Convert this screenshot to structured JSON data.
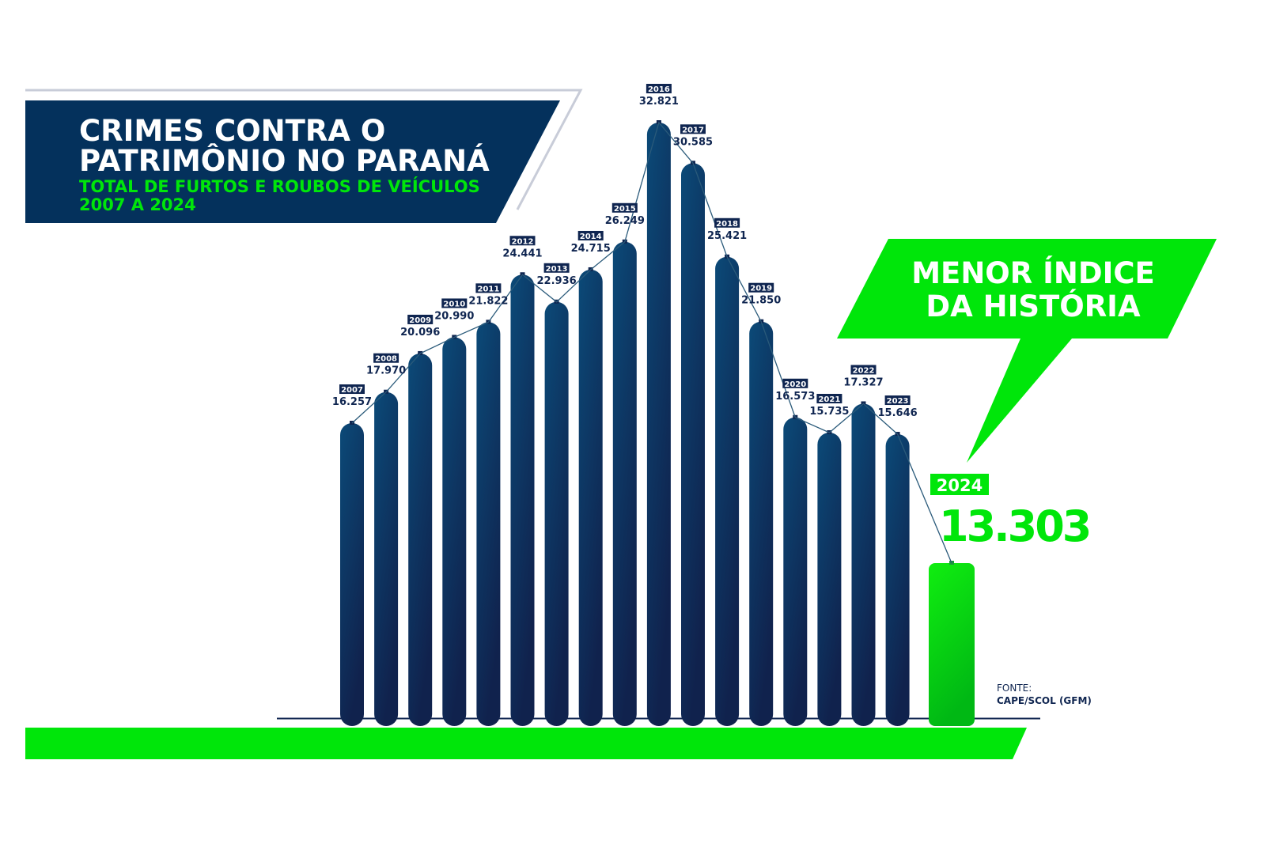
{
  "header": {
    "title_line1": "CRIMES CONTRA O",
    "title_line2": "PATRIMÔNIO NO PARANÁ",
    "subtitle_line1": "TOTAL DE FURTOS E ROUBOS DE VEÍCULOS",
    "subtitle_line2": "2007 A 2024"
  },
  "callout": {
    "line1": "MENOR ÍNDICE",
    "line2": "DA HISTÓRIA"
  },
  "highlight": {
    "year": "2024",
    "value": "13.303"
  },
  "source": {
    "label": "FONTE:",
    "value": "CAPE/SCOL (GFM)"
  },
  "colors": {
    "navy": "#0a3560",
    "navy_dark": "#0f2550",
    "green": "#00e60a",
    "outline": "#c8ccd8"
  },
  "chart_data": {
    "type": "bar",
    "title": "CRIMES CONTRA O PATRIMÔNIO NO PARANÁ",
    "subtitle": "TOTAL DE FURTOS E ROUBOS DE VEÍCULOS 2007 A 2024",
    "categories": [
      "2007",
      "2008",
      "2009",
      "2010",
      "2011",
      "2012",
      "2013",
      "2014",
      "2015",
      "2016",
      "2017",
      "2018",
      "2019",
      "2020",
      "2021",
      "2022",
      "2023",
      "2024"
    ],
    "values": [
      16257,
      17970,
      20096,
      20990,
      21822,
      24441,
      22936,
      24715,
      26249,
      32821,
      30585,
      25421,
      21850,
      16573,
      15735,
      17327,
      15646,
      13303
    ],
    "labels": [
      "16.257",
      "17.970",
      "20.096",
      "20.990",
      "21.822",
      "24.441",
      "22.936",
      "24.715",
      "26.249",
      "32.821",
      "30.585",
      "25.421",
      "21.850",
      "16.573",
      "15.735",
      "17.327",
      "15.646",
      "13.303"
    ],
    "highlight_category": "2024",
    "grid": false,
    "legend": "none"
  }
}
